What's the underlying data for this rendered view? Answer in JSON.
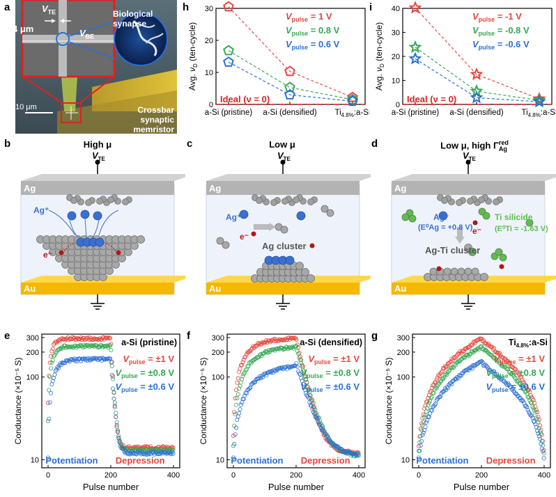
{
  "panels": {
    "a": {
      "label": "a",
      "vte": "V",
      "vte_sub": "TE",
      "vbe": "V",
      "vbe_sub": "BE",
      "scale": "4 μm",
      "scale2": "10 μm",
      "bio": [
        "Biological",
        "synapse"
      ],
      "crossbar": [
        "Crossbar",
        "synaptic memristor"
      ]
    },
    "h": {
      "label": "h"
    },
    "i": {
      "label": "i"
    },
    "b": {
      "label": "b",
      "title": "High μ",
      "ag_top": "Ag",
      "au": "Au",
      "vte": "V",
      "vte_sub": "TE",
      "agp": "Ag⁺",
      "em": "e⁻"
    },
    "c": {
      "label": "c",
      "title": "Low μ",
      "ag_top": "Ag",
      "au": "Au",
      "vte": "V",
      "vte_sub": "TE",
      "agp": "Ag⁺",
      "em": "e⁻",
      "cluster": "Ag cluster"
    },
    "d": {
      "label": "d",
      "title_main": "Low μ, high Γ",
      "title_sup": "red",
      "title_sub": "Ag",
      "ag_top": "Ag",
      "au": "Au",
      "vte": "V",
      "vte_sub": "TE",
      "agp": "Ag⁺",
      "ag_pot": "(E⁰Ag = +0.8 V)",
      "em": "e⁻",
      "ti_sil": "Ti silicide",
      "ti_pot": "(E⁰Ti = -1.63 V)",
      "cluster": "Ag-Ti cluster"
    },
    "e": {
      "label": "e"
    },
    "f": {
      "label": "f"
    },
    "g": {
      "label": "g"
    }
  },
  "colors": {
    "red": "#e8453c",
    "green": "#34a853",
    "blue": "#2a6fd6",
    "ag": "#a9a9a9",
    "au": "#f5b800",
    "ion": "#3b6fd1",
    "electron": "#b01818",
    "ti": "#5cbf4a"
  },
  "chart_data": [
    {
      "id": "h",
      "type": "line",
      "categories": [
        "a-Si (pristine)",
        "a-Si (densified)",
        "Ti4.8%:a-Si"
      ],
      "ylabel": "Avg. νD (ten-cycle)",
      "ylim": [
        0,
        30
      ],
      "yticks": [
        0,
        10,
        20,
        30
      ],
      "ideal_label": "Ideal (ν = 0)",
      "series": [
        {
          "name": "Vpulse = 1 V",
          "value_label": "= 1 V",
          "values": [
            30.5,
            10.3,
            2.2
          ],
          "color": "#e8453c",
          "marker": "pentagon"
        },
        {
          "name": "Vpulse = 0.8 V",
          "value_label": "= 0.8 V",
          "values": [
            16.8,
            5.3,
            1.5
          ],
          "color": "#34a853",
          "marker": "pentagon"
        },
        {
          "name": "Vpulse = 0.6 V",
          "value_label": "= 0.6 V",
          "values": [
            13.2,
            3.0,
            1.0
          ],
          "color": "#2a6fd6",
          "marker": "pentagon"
        }
      ]
    },
    {
      "id": "i",
      "type": "line",
      "categories": [
        "a-Si (pristine)",
        "a-Si (densified)",
        "Ti4.8%:a-Si"
      ],
      "ylabel": "Avg. νD (ten-cycle)",
      "ylim": [
        0,
        40
      ],
      "yticks": [
        0,
        10,
        20,
        30,
        40
      ],
      "ideal_label": "Ideal (ν = 0)",
      "series": [
        {
          "name": "Vpulse = -1 V",
          "value_label": "= -1 V",
          "values": [
            40.2,
            12.5,
            2.3
          ],
          "color": "#e8453c",
          "marker": "star"
        },
        {
          "name": "Vpulse = -0.8 V",
          "value_label": "= -0.8 V",
          "values": [
            23.8,
            5.5,
            1.7
          ],
          "color": "#34a853",
          "marker": "star"
        },
        {
          "name": "Vpulse = -0.6 V",
          "value_label": "= -0.6 V",
          "values": [
            19.0,
            2.8,
            1.1
          ],
          "color": "#2a6fd6",
          "marker": "star"
        }
      ]
    },
    {
      "id": "e",
      "type": "scatter",
      "title": "a-Si (pristine)",
      "xlabel": "Pulse number",
      "ylabel": "Conductance (×10⁻⁵ S)",
      "xlim": [
        -20,
        420
      ],
      "ylim": [
        8,
        330
      ],
      "yscale": "log",
      "xticks": [
        0,
        200,
        400
      ],
      "yticks": [
        10,
        100,
        200,
        300
      ],
      "potentiation_label": "Potentiation",
      "depression_label": "Depression",
      "series": [
        {
          "name": "Vpulse = ±1 V",
          "value_label": "= ±1 V",
          "color": "#e8453c",
          "start": 50,
          "pot_end": 292,
          "pot_k": 12,
          "dep_end": 14,
          "dep_k": 6,
          "mode": "fast"
        },
        {
          "name": "Vpulse = ±0.8 V",
          "value_label": "= ±0.8 V",
          "color": "#34a853",
          "start": 30,
          "pot_end": 236,
          "pot_k": 14,
          "dep_end": 13,
          "dep_k": 7,
          "mode": "fast"
        },
        {
          "name": "Vpulse = ±0.6 V",
          "value_label": "= ±0.6 V",
          "color": "#2a6fd6",
          "start": 11,
          "pot_end": 163,
          "pot_k": 20,
          "dep_end": 12,
          "dep_k": 8,
          "mode": "fast"
        }
      ]
    },
    {
      "id": "f",
      "type": "scatter",
      "title": "a-Si (densified)",
      "xlabel": "Pulse number",
      "ylabel": "Conductance (×10⁻⁵ S)",
      "xlim": [
        -20,
        420
      ],
      "ylim": [
        8,
        330
      ],
      "yscale": "log",
      "xticks": [
        0,
        200,
        400
      ],
      "yticks": [
        10,
        100,
        200,
        300
      ],
      "potentiation_label": "Potentiation",
      "depression_label": "Depression",
      "series": [
        {
          "name": "Vpulse = ±1 V",
          "value_label": "= ±1 V",
          "color": "#e8453c",
          "start": 20,
          "pot_end": 295,
          "pot_k": 45,
          "dep_end": 12,
          "dep_k": 25,
          "mode": "mid"
        },
        {
          "name": "Vpulse = ±0.8 V",
          "value_label": "= ±0.8 V",
          "color": "#34a853",
          "start": 15,
          "pot_end": 238,
          "pot_k": 60,
          "dep_end": 11,
          "dep_k": 30,
          "mode": "mid"
        },
        {
          "name": "Vpulse = ±0.6 V",
          "value_label": "= ±0.6 V",
          "color": "#2a6fd6",
          "start": 11,
          "pot_end": 145,
          "pot_k": 80,
          "dep_end": 11,
          "dep_k": 35,
          "mode": "mid"
        }
      ]
    },
    {
      "id": "g",
      "type": "scatter",
      "title": "Ti4.8%:a-Si",
      "xlabel": "Pulse number",
      "ylabel": "Conductance (×10⁻⁵ S)",
      "xlim": [
        -20,
        420
      ],
      "ylim": [
        8,
        330
      ],
      "yscale": "log",
      "xticks": [
        0,
        200,
        400
      ],
      "yticks": [
        10,
        100,
        200,
        300
      ],
      "potentiation_label": "Potentiation",
      "depression_label": "Depression",
      "series": [
        {
          "name": "Vpulse = ±1 V",
          "value_label": "= ±1 V",
          "color": "#e8453c",
          "start": 15,
          "pot_end": 292,
          "pot_k": 0,
          "dep_end": 12,
          "dep_k": 0,
          "mode": "linear"
        },
        {
          "name": "Vpulse = ±0.8 V",
          "value_label": "= ±0.8 V",
          "color": "#34a853",
          "start": 13,
          "pot_end": 232,
          "pot_k": 0,
          "dep_end": 11,
          "dep_k": 0,
          "mode": "linear"
        },
        {
          "name": "Vpulse = ±0.6 V",
          "value_label": "= ±0.6 V",
          "color": "#2a6fd6",
          "start": 11,
          "pot_end": 152,
          "pot_k": 0,
          "dep_end": 10,
          "dep_k": 0,
          "mode": "linear"
        }
      ]
    }
  ]
}
